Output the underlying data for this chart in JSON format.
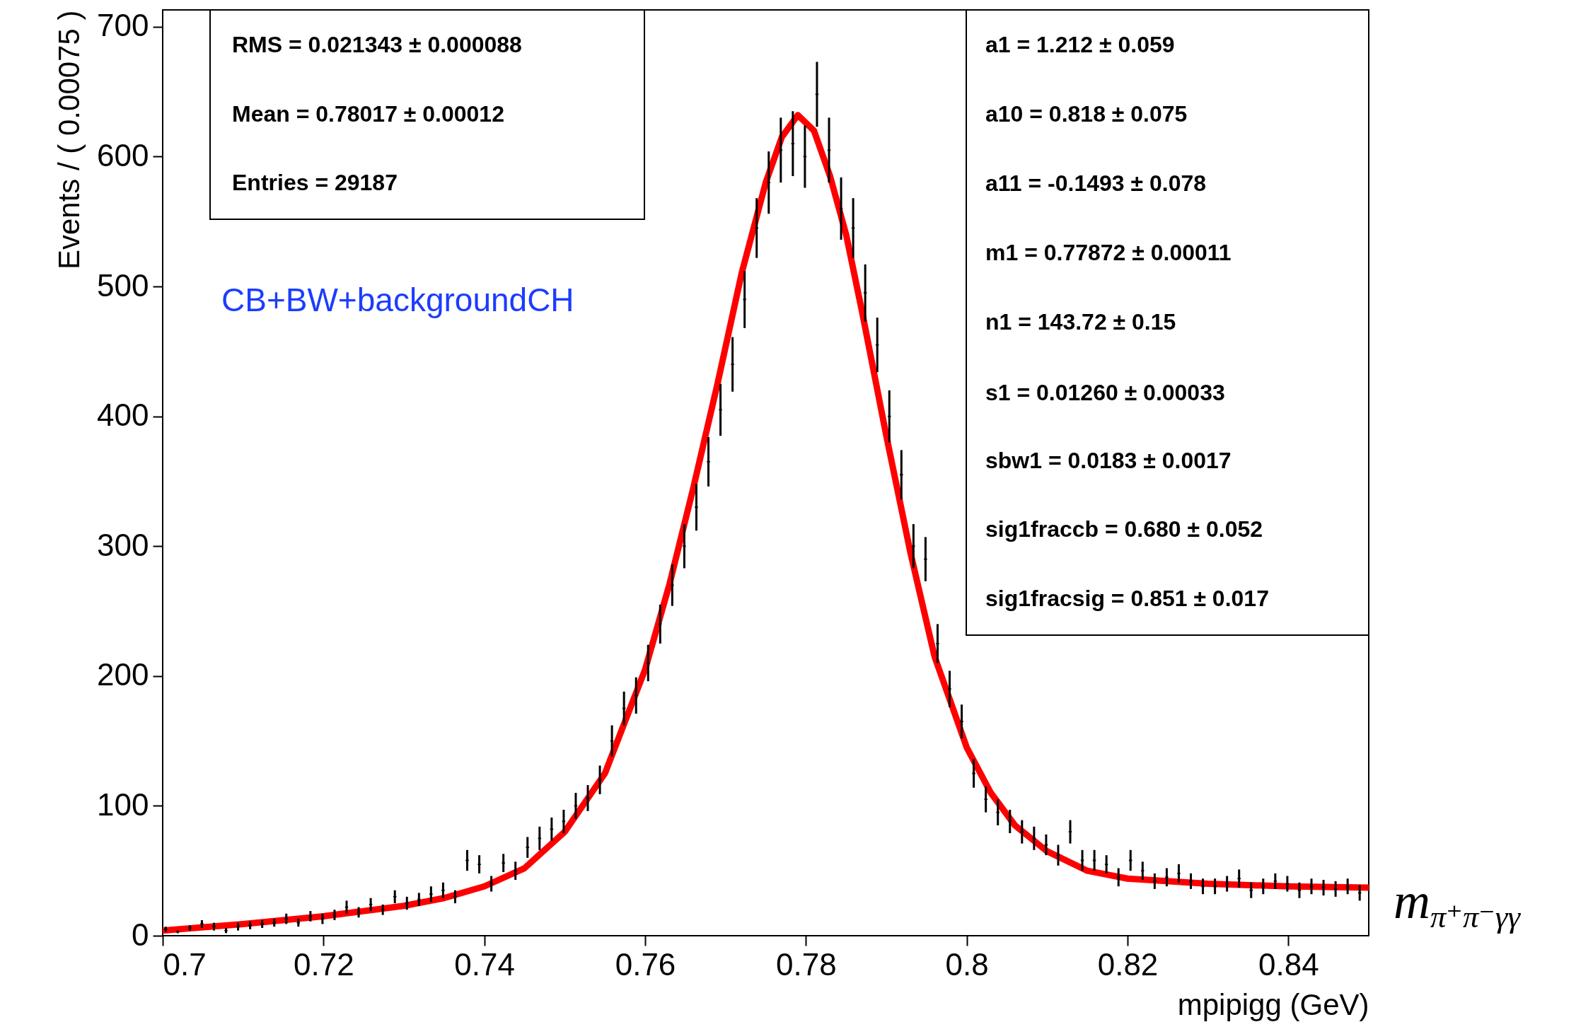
{
  "chart_data": {
    "type": "scatter",
    "xlabel": "mpipigg (GeV)",
    "ylabel": "Events / ( 0.00075 )",
    "xlim": [
      0.7,
      0.85
    ],
    "ylim": [
      0,
      713
    ],
    "xticks": [
      0.7,
      0.72,
      0.74,
      0.76,
      0.78,
      0.8,
      0.82,
      0.84
    ],
    "yticks": [
      0,
      100,
      200,
      300,
      400,
      500,
      600,
      700
    ],
    "grid": false,
    "x": [
      0.700375,
      0.701875,
      0.703375,
      0.704875,
      0.706375,
      0.707875,
      0.709375,
      0.710875,
      0.712375,
      0.713875,
      0.715375,
      0.716875,
      0.718375,
      0.719875,
      0.721375,
      0.722875,
      0.724375,
      0.725875,
      0.727375,
      0.728875,
      0.730375,
      0.731875,
      0.733375,
      0.734875,
      0.736375,
      0.737875,
      0.739375,
      0.740875,
      0.742375,
      0.743875,
      0.745375,
      0.746875,
      0.748375,
      0.749875,
      0.751375,
      0.752875,
      0.754375,
      0.755875,
      0.757375,
      0.758875,
      0.760375,
      0.761875,
      0.763375,
      0.764875,
      0.766375,
      0.767875,
      0.769375,
      0.770875,
      0.772375,
      0.773875,
      0.775375,
      0.776875,
      0.778375,
      0.779875,
      0.781375,
      0.782875,
      0.784375,
      0.785875,
      0.787375,
      0.788875,
      0.790375,
      0.791875,
      0.793375,
      0.794875,
      0.796375,
      0.797875,
      0.799375,
      0.800875,
      0.802375,
      0.803875,
      0.805375,
      0.806875,
      0.808375,
      0.809875,
      0.811375,
      0.812875,
      0.814375,
      0.815875,
      0.817375,
      0.818875,
      0.820375,
      0.821875,
      0.823375,
      0.824875,
      0.826375,
      0.827875,
      0.829375,
      0.830875,
      0.832375,
      0.833875,
      0.835375,
      0.836875,
      0.838375,
      0.839875,
      0.841375,
      0.842875,
      0.844375,
      0.845875,
      0.847375,
      0.848875
    ],
    "series": [
      {
        "type": "scatter",
        "color": "#000000",
        "marker": "cross",
        "values": [
          5,
          3,
          6,
          9,
          7,
          4,
          7,
          8,
          9,
          10,
          13,
          10,
          15,
          13,
          16,
          22,
          18,
          24,
          20,
          30,
          25,
          28,
          32,
          35,
          30,
          58,
          55,
          40,
          56,
          50,
          68,
          75,
          82,
          88,
          100,
          106,
          120,
          150,
          175,
          185,
          210,
          240,
          270,
          300,
          330,
          365,
          405,
          440,
          490,
          545,
          580,
          605,
          610,
          600,
          648,
          605,
          560,
          545,
          495,
          455,
          400,
          355,
          300,
          290,
          225,
          190,
          165,
          125,
          105,
          95,
          88,
          80,
          75,
          70,
          62,
          80,
          58,
          58,
          55,
          45,
          58,
          50,
          42,
          45,
          48,
          42,
          38,
          38,
          40,
          44,
          35,
          38,
          42,
          40,
          35,
          38,
          37,
          36,
          38,
          33
        ],
        "errors": [
          2,
          null,
          2,
          3,
          3,
          2,
          3,
          3,
          3,
          3,
          4,
          3,
          4,
          4,
          4,
          5,
          4,
          5,
          4,
          5,
          5,
          5,
          6,
          6,
          5,
          8,
          7,
          6,
          7,
          7,
          8,
          9,
          9,
          9,
          10,
          10,
          11,
          12,
          13,
          14,
          14,
          15,
          16,
          17,
          18,
          19,
          20,
          21,
          22,
          23,
          24,
          25,
          25,
          24,
          25,
          25,
          24,
          23,
          22,
          21,
          20,
          19,
          17,
          17,
          15,
          14,
          13,
          11,
          10,
          10,
          9,
          9,
          9,
          8,
          8,
          9,
          8,
          8,
          7,
          7,
          8,
          7,
          6,
          7,
          7,
          6,
          6,
          6,
          6,
          7,
          6,
          6,
          6,
          6,
          6,
          6,
          6,
          6,
          6,
          6
        ]
      },
      {
        "type": "line",
        "color": "#ff0000",
        "x": [
          0.7,
          0.71,
          0.72,
          0.73,
          0.735,
          0.74,
          0.745,
          0.75,
          0.755,
          0.76,
          0.763,
          0.766,
          0.769,
          0.772,
          0.775,
          0.777,
          0.779,
          0.781,
          0.783,
          0.785,
          0.787,
          0.79,
          0.793,
          0.796,
          0.8,
          0.803,
          0.806,
          0.81,
          0.815,
          0.82,
          0.83,
          0.84,
          0.85
        ],
        "values": [
          4,
          9,
          15,
          23,
          29,
          38,
          52,
          80,
          125,
          205,
          270,
          345,
          425,
          510,
          580,
          615,
          632,
          620,
          585,
          540,
          480,
          385,
          295,
          215,
          145,
          110,
          85,
          65,
          50,
          44,
          40,
          38,
          37
        ]
      }
    ],
    "annotations": [
      "RMS =  0.021343  ± 0.000088",
      "Mean =  0.78017  ± 0.00012",
      "Entries =  29187",
      "a1 =  1.212  ± 0.059",
      "a10 =  0.818  ± 0.075",
      "a11 = -0.1493  ± 0.078",
      "m1 =  0.77872  ± 0.00011",
      "n1 =  143.72  ± 0.15",
      "s1 =  0.01260  ± 0.00033",
      "sbw1 =  0.0183  ± 0.0017",
      "sig1fraccb =  0.680  ± 0.052",
      "sig1fracsig =  0.851  ± 0.017",
      "CB+BW+backgroundCH",
      "m$_{π⁺π⁻γγ}$"
    ]
  }
}
